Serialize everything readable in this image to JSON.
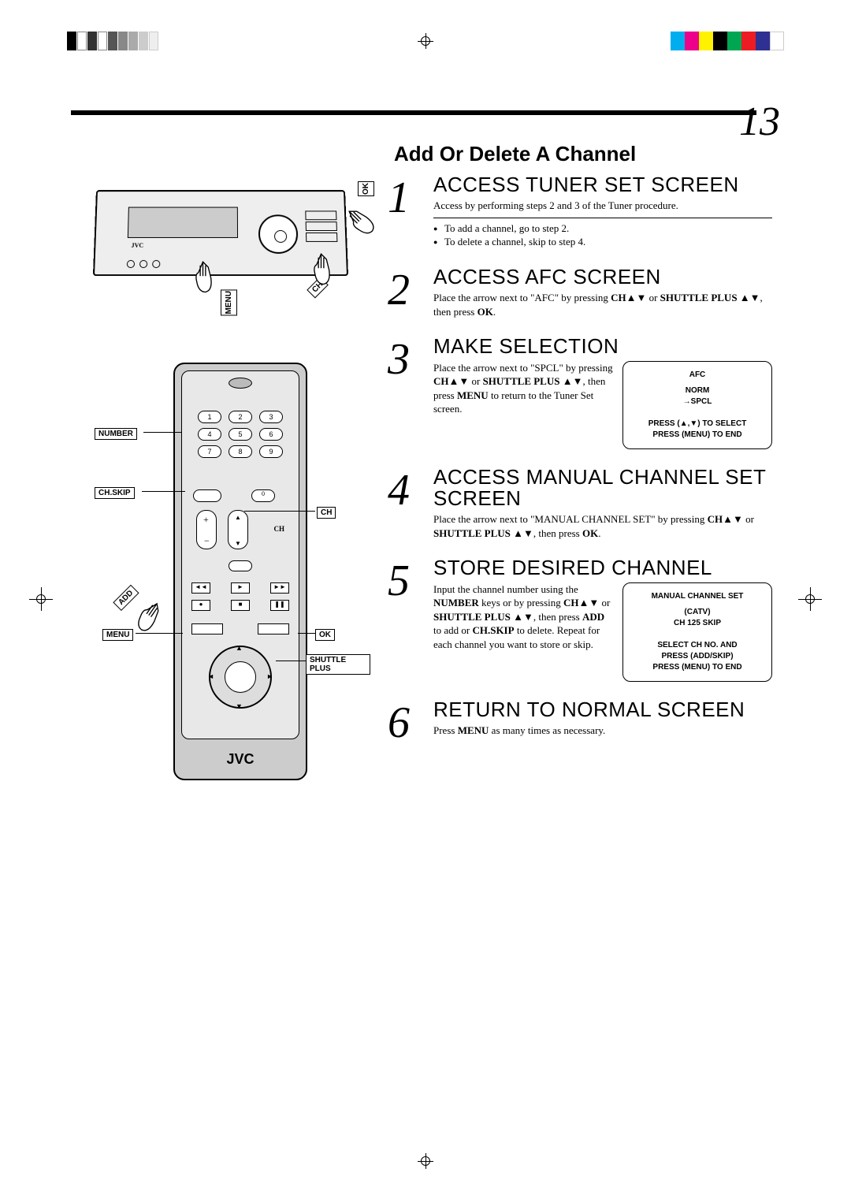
{
  "page_number": "13",
  "section_title": "Add Or Delete A Channel",
  "colors": {
    "registration": [
      "#00aeef",
      "#ec008c",
      "#fff200",
      "#000000",
      "#00a651",
      "#ed1c24",
      "#2e3192",
      "#ffffff"
    ]
  },
  "vcr": {
    "labels": {
      "ok": "OK",
      "ch": "CH",
      "menu": "MENU"
    },
    "brand": "JVC"
  },
  "remote": {
    "labels": {
      "number": "NUMBER",
      "chskip": "CH.SKIP",
      "ch": "CH",
      "add": "ADD",
      "menu": "MENU",
      "ok": "OK",
      "shuttle_plus": "SHUTTLE PLUS"
    },
    "keypad": [
      "1",
      "2",
      "3",
      "4",
      "5",
      "6",
      "7",
      "8",
      "9",
      "0"
    ],
    "brand": "JVC"
  },
  "steps": [
    {
      "num": "1",
      "heading": "ACCESS TUNER SET SCREEN",
      "body": "Access by performing steps 2 and 3 of the Tuner procedure.",
      "bullets": [
        "To add a channel, go to step 2.",
        "To delete a channel, skip to step 4."
      ]
    },
    {
      "num": "2",
      "heading": "ACCESS AFC SCREEN",
      "body_html": "Place the arrow next to \"AFC\" by pressing <b>CH▲▼</b> or <b>SHUTTLE PLUS ▲▼</b>, then press <b>OK</b>."
    },
    {
      "num": "3",
      "heading": "MAKE SELECTION",
      "body_html": "Place the arrow next to \"SPCL\" by pressing <b>CH▲▼</b> or <b>SHUTTLE PLUS ▲▼</b>, then press <b>MENU</b> to return to the Tuner Set screen.",
      "screen": {
        "title": "AFC",
        "line1": "NORM",
        "line2": "→SPCL",
        "footer1": "PRESS (▲,▼) TO SELECT",
        "footer2": "PRESS (MENU) TO END"
      }
    },
    {
      "num": "4",
      "heading": "ACCESS MANUAL CHANNEL SET SCREEN",
      "body_html": "Place the arrow next to \"MANUAL CHANNEL SET\" by pressing <b>CH▲▼</b> or <b>SHUTTLE PLUS ▲▼</b>, then press <b>OK</b>."
    },
    {
      "num": "5",
      "heading": "STORE DESIRED CHANNEL",
      "body_html": "Input the channel number using the <b>NUMBER</b> keys or by pressing <b>CH▲▼</b> or <b>SHUTTLE PLUS ▲▼</b>, then press <b>ADD</b> to add or <b>CH.SKIP</b> to delete. Repeat for each channel you want to store or skip.",
      "screen": {
        "title": "MANUAL CHANNEL SET",
        "line1": "(CATV)",
        "line2": "CH  125  SKIP",
        "footer1": "SELECT CH NO. AND",
        "footer2": "PRESS (ADD/SKIP)",
        "footer3": "PRESS (MENU) TO END"
      }
    },
    {
      "num": "6",
      "heading": "RETURN TO NORMAL SCREEN",
      "body_html": "Press <b>MENU</b> as many times as necessary."
    }
  ]
}
